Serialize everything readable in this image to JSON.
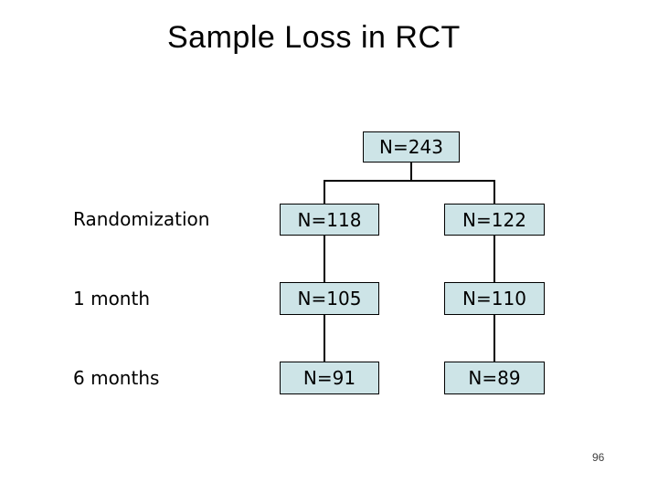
{
  "slide": {
    "title": "Sample Loss in RCT",
    "page_number": "96",
    "colors": {
      "background": "#ffffff",
      "node_fill": "#cde4e7",
      "node_border": "#000000"
    }
  },
  "flowchart": {
    "root": {
      "label": "N=243"
    },
    "rows": [
      {
        "stage": "Randomization",
        "left": "N=118",
        "right": "N=122"
      },
      {
        "stage": "1 month",
        "left": "N=105",
        "right": "N=110"
      },
      {
        "stage": "6 months",
        "left": "N=91",
        "right": "N=89"
      }
    ]
  }
}
